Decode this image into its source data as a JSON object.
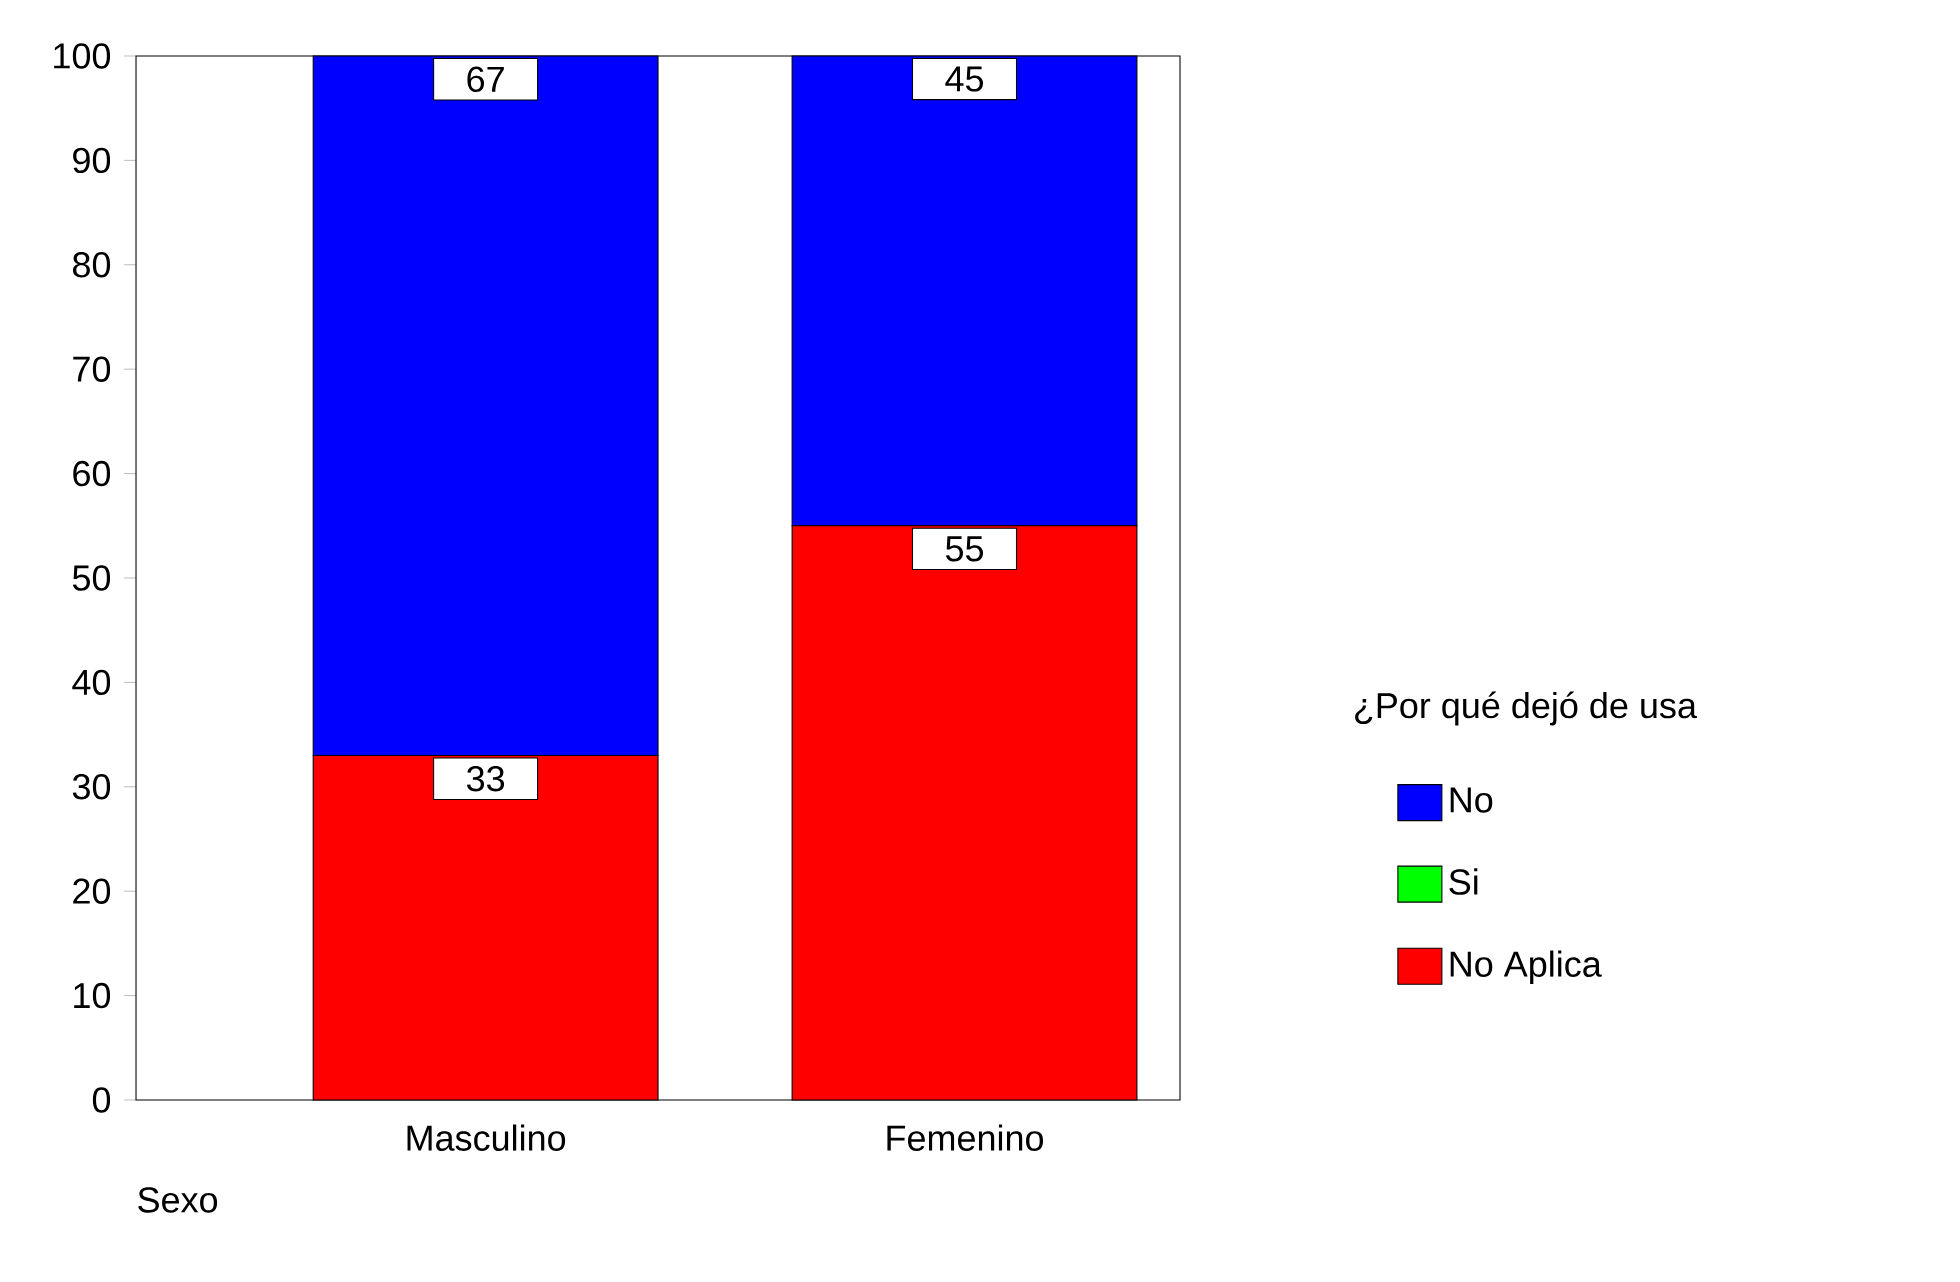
{
  "chart_data": {
    "type": "bar",
    "stacked": true,
    "xlabel": "Sexo",
    "legend_title": "¿Por qué dejó de usa",
    "categories": [
      "Masculino",
      "Femenino"
    ],
    "series": [
      {
        "name": "No Aplica",
        "color": "#ff0000",
        "values": [
          33,
          55
        ],
        "value_labels": [
          "33",
          "55"
        ]
      },
      {
        "name": "Si",
        "color": "#00ff00",
        "values": [
          0,
          0
        ],
        "value_labels": [
          null,
          null
        ]
      },
      {
        "name": "No",
        "color": "#0000ff",
        "values": [
          67,
          45
        ],
        "value_labels": [
          "67",
          "45"
        ]
      }
    ],
    "ylim": [
      0,
      100
    ],
    "yticks": [
      0,
      10,
      20,
      30,
      40,
      50,
      60,
      70,
      80,
      90,
      100
    ],
    "grid": false,
    "legend": "right"
  }
}
